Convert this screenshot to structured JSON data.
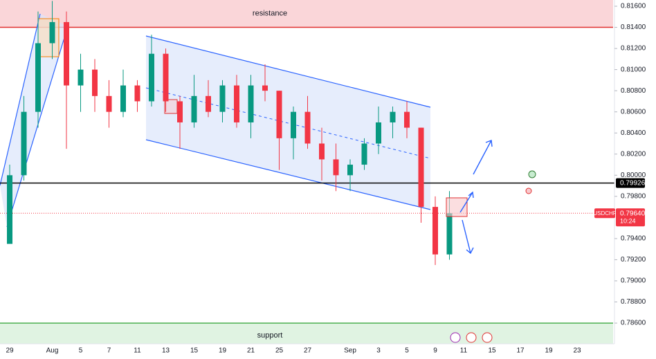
{
  "chart_data": {
    "type": "candlestick",
    "categories": [
      "29",
      null,
      null,
      "Aug",
      null,
      "5",
      null,
      "7",
      null,
      "11",
      null,
      "13",
      null,
      "15",
      null,
      "19",
      null,
      "21",
      null,
      "25",
      null,
      "27",
      null,
      null,
      "Sep",
      null,
      "3",
      null,
      "5",
      null,
      "9",
      null,
      "11",
      null,
      "15",
      null,
      "17",
      null,
      "19",
      null,
      "23"
    ],
    "candles": [
      {
        "open": 0.7935,
        "high": 0.801,
        "low": 0.7935,
        "close": 0.8
      },
      {
        "open": 0.8,
        "high": 0.8075,
        "low": 0.7995,
        "close": 0.806
      },
      {
        "open": 0.806,
        "high": 0.8155,
        "low": 0.8045,
        "close": 0.8125
      },
      {
        "open": 0.8125,
        "high": 0.8165,
        "low": 0.811,
        "close": 0.8145
      },
      {
        "open": 0.8145,
        "high": 0.8155,
        "low": 0.8025,
        "close": 0.8085
      },
      {
        "open": 0.8085,
        "high": 0.8115,
        "low": 0.806,
        "close": 0.81
      },
      {
        "open": 0.81,
        "high": 0.811,
        "low": 0.806,
        "close": 0.8075
      },
      {
        "open": 0.8075,
        "high": 0.809,
        "low": 0.8045,
        "close": 0.806
      },
      {
        "open": 0.806,
        "high": 0.81,
        "low": 0.8055,
        "close": 0.8085
      },
      {
        "open": 0.8085,
        "high": 0.809,
        "low": 0.806,
        "close": 0.807
      },
      {
        "open": 0.807,
        "high": 0.8133,
        "low": 0.8065,
        "close": 0.8115
      },
      {
        "open": 0.8115,
        "high": 0.812,
        "low": 0.806,
        "close": 0.807
      },
      {
        "open": 0.807,
        "high": 0.8075,
        "low": 0.8025,
        "close": 0.805
      },
      {
        "open": 0.805,
        "high": 0.8095,
        "low": 0.8045,
        "close": 0.8075
      },
      {
        "open": 0.8075,
        "high": 0.809,
        "low": 0.8055,
        "close": 0.806
      },
      {
        "open": 0.806,
        "high": 0.809,
        "low": 0.805,
        "close": 0.8085
      },
      {
        "open": 0.8085,
        "high": 0.8095,
        "low": 0.8045,
        "close": 0.805
      },
      {
        "open": 0.805,
        "high": 0.8095,
        "low": 0.8035,
        "close": 0.8085
      },
      {
        "open": 0.8085,
        "high": 0.8105,
        "low": 0.807,
        "close": 0.808
      },
      {
        "open": 0.808,
        "high": 0.808,
        "low": 0.8005,
        "close": 0.8035
      },
      {
        "open": 0.8035,
        "high": 0.8065,
        "low": 0.8015,
        "close": 0.806
      },
      {
        "open": 0.806,
        "high": 0.8075,
        "low": 0.8025,
        "close": 0.803
      },
      {
        "open": 0.803,
        "high": 0.8045,
        "low": 0.7995,
        "close": 0.8015
      },
      {
        "open": 0.8015,
        "high": 0.803,
        "low": 0.7985,
        "close": 0.8
      },
      {
        "open": 0.8,
        "high": 0.8015,
        "low": 0.7985,
        "close": 0.801
      },
      {
        "open": 0.801,
        "high": 0.8035,
        "low": 0.8005,
        "close": 0.803
      },
      {
        "open": 0.803,
        "high": 0.8065,
        "low": 0.802,
        "close": 0.805
      },
      {
        "open": 0.805,
        "high": 0.8065,
        "low": 0.8035,
        "close": 0.806
      },
      {
        "open": 0.806,
        "high": 0.807,
        "low": 0.8035,
        "close": 0.8045
      },
      {
        "open": 0.8045,
        "high": 0.8045,
        "low": 0.7955,
        "close": 0.797
      },
      {
        "open": 0.797,
        "high": 0.798,
        "low": 0.7915,
        "close": 0.7925
      },
      {
        "open": 0.7925,
        "high": 0.7985,
        "low": 0.792,
        "close": 0.7964
      },
      null,
      null,
      null,
      null,
      null,
      null,
      null,
      null,
      null
    ],
    "up_color": "#089981",
    "down_color": "#f23645",
    "ylim": [
      0.78404,
      0.81659
    ],
    "yticks": [
      {
        "value": 0.786,
        "label": "0.78600"
      },
      {
        "value": 0.788,
        "label": "0.78800"
      },
      {
        "value": 0.79,
        "label": "0.79000"
      },
      {
        "value": 0.792,
        "label": "0.79200"
      },
      {
        "value": 0.794,
        "label": "0.79400"
      },
      {
        "value": 0.798,
        "label": "0.79800"
      },
      {
        "value": 0.8,
        "label": "0.80000"
      },
      {
        "value": 0.802,
        "label": "0.80200"
      },
      {
        "value": 0.804,
        "label": "0.80400"
      },
      {
        "value": 0.806,
        "label": "0.80600"
      },
      {
        "value": 0.808,
        "label": "0.80800"
      },
      {
        "value": 0.81,
        "label": "0.81000"
      },
      {
        "value": 0.812,
        "label": "0.81200"
      },
      {
        "value": 0.814,
        "label": "0.81400"
      },
      {
        "value": 0.816,
        "label": "0.81600"
      }
    ],
    "zones": [
      {
        "label": "resistance",
        "from": 0.814,
        "to": 0.81659,
        "color": "#f8c8cc",
        "line": "#e03030",
        "text_color": "#9c27b0"
      },
      {
        "label": "support",
        "from": 0.78404,
        "to": 0.786,
        "color": "#d5efd8",
        "line": "#4caf50",
        "text_color": "#9c27b0"
      }
    ],
    "level": {
      "value": 0.79926,
      "label": "0.79926"
    },
    "symbol": "USDCHF",
    "last_price": {
      "value": 0.7964,
      "label": "0.79640"
    },
    "countdown": "10:24"
  }
}
